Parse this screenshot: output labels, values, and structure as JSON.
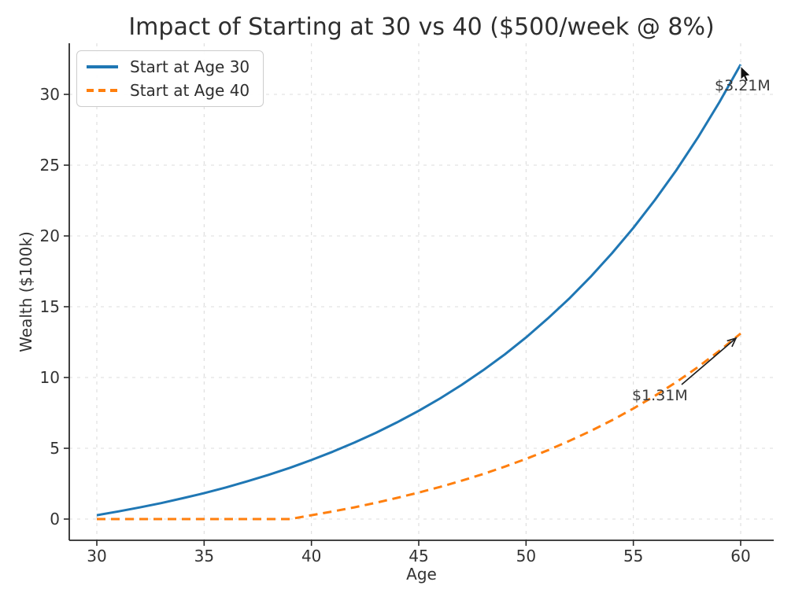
{
  "chart_data": {
    "type": "line",
    "title": "Impact of Starting at 30 vs 40 ($500/week @ 8%)",
    "xlabel": "Age",
    "ylabel": "Wealth ($100k)",
    "x": [
      30,
      31,
      32,
      33,
      34,
      35,
      36,
      37,
      38,
      39,
      40,
      41,
      42,
      43,
      44,
      45,
      46,
      47,
      48,
      49,
      50,
      51,
      52,
      53,
      54,
      55,
      56,
      57,
      58,
      59,
      60
    ],
    "series": [
      {
        "name": "Start at Age 30",
        "color": "#1f77b4",
        "line_style": "solid",
        "values": [
          0.27,
          0.54,
          0.82,
          1.13,
          1.47,
          1.83,
          2.23,
          2.66,
          3.12,
          3.62,
          4.17,
          4.76,
          5.4,
          6.09,
          6.84,
          7.65,
          8.53,
          9.48,
          10.51,
          11.62,
          12.83,
          14.15,
          15.56,
          17.1,
          18.77,
          20.57,
          22.53,
          24.64,
          26.94,
          29.42,
          32.11
        ]
      },
      {
        "name": "Start at Age 40",
        "color": "#ff7f0e",
        "line_style": "dashed",
        "values": [
          0,
          0,
          0,
          0,
          0,
          0,
          0,
          0,
          0,
          0,
          0.27,
          0.54,
          0.83,
          1.15,
          1.5,
          1.87,
          2.27,
          2.71,
          3.18,
          3.7,
          4.25,
          4.85,
          5.51,
          6.21,
          6.98,
          7.81,
          8.7,
          9.68,
          10.73,
          11.87,
          13.11
        ]
      }
    ],
    "xticks": [
      "30",
      "35",
      "40",
      "45",
      "50",
      "55",
      "60"
    ],
    "xtick_values": [
      30,
      35,
      40,
      45,
      50,
      55,
      60
    ],
    "yticks": [
      "0",
      "5",
      "10",
      "15",
      "20",
      "25",
      "30"
    ],
    "ytick_values": [
      0,
      5,
      10,
      15,
      20,
      25,
      30
    ],
    "xlim": [
      28.7,
      61.5
    ],
    "ylim": [
      -1.5,
      33.6
    ],
    "grid": true,
    "grid_color": "#dcdcdc",
    "axis_color": "#2a2a2a",
    "tick_text_color": "#333333",
    "legend_position": "upper left",
    "annotations": [
      {
        "text": "$3.21M",
        "point_x": 60,
        "point_y": 32.11
      },
      {
        "text": "$1.31M",
        "point_x": 60,
        "point_y": 13.11
      }
    ]
  },
  "mouse_cursor": {
    "visible": true,
    "near": "blue line endpoint"
  }
}
